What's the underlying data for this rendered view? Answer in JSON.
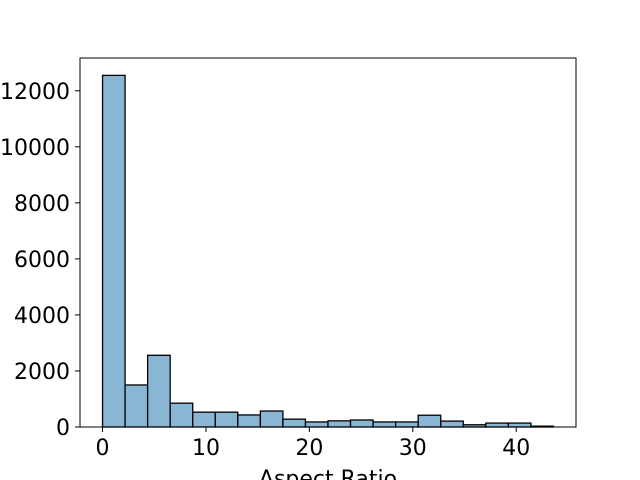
{
  "chart_data": {
    "type": "bar",
    "subtype": "histogram",
    "xlabel": "Aspect Ratio",
    "ylabel": "",
    "title": "",
    "bin_width": 2.18,
    "bins": [
      {
        "x0": 0.0,
        "x1": 2.18,
        "count": 12550
      },
      {
        "x0": 2.18,
        "x1": 4.36,
        "count": 1500
      },
      {
        "x0": 4.36,
        "x1": 6.54,
        "count": 2560
      },
      {
        "x0": 6.54,
        "x1": 8.72,
        "count": 850
      },
      {
        "x0": 8.72,
        "x1": 10.9,
        "count": 530
      },
      {
        "x0": 10.9,
        "x1": 13.08,
        "count": 530
      },
      {
        "x0": 13.08,
        "x1": 15.26,
        "count": 430
      },
      {
        "x0": 15.26,
        "x1": 17.44,
        "count": 570
      },
      {
        "x0": 17.44,
        "x1": 19.62,
        "count": 280
      },
      {
        "x0": 19.62,
        "x1": 21.8,
        "count": 180
      },
      {
        "x0": 21.8,
        "x1": 23.98,
        "count": 220
      },
      {
        "x0": 23.98,
        "x1": 26.16,
        "count": 250
      },
      {
        "x0": 26.16,
        "x1": 28.34,
        "count": 180
      },
      {
        "x0": 28.34,
        "x1": 30.52,
        "count": 180
      },
      {
        "x0": 30.52,
        "x1": 32.7,
        "count": 420
      },
      {
        "x0": 32.7,
        "x1": 34.88,
        "count": 210
      },
      {
        "x0": 34.88,
        "x1": 37.06,
        "count": 80
      },
      {
        "x0": 37.06,
        "x1": 39.24,
        "count": 140
      },
      {
        "x0": 39.24,
        "x1": 41.42,
        "count": 140
      },
      {
        "x0": 41.42,
        "x1": 43.6,
        "count": 30
      }
    ],
    "xlim": [
      -2.18,
      45.78
    ],
    "ylim": [
      0,
      13170
    ],
    "xticks": [
      0,
      10,
      20,
      30,
      40
    ],
    "xtick_labels": [
      "0",
      "10",
      "20",
      "30",
      "40"
    ],
    "yticks": [
      0,
      2000,
      4000,
      6000,
      8000,
      10000,
      12000
    ],
    "ytick_labels": [
      "0",
      "2000",
      "4000",
      "6000",
      "8000",
      "10000",
      "12000"
    ],
    "grid": false,
    "bar_color": "#8ab6d6",
    "edge_color": "#000000"
  }
}
